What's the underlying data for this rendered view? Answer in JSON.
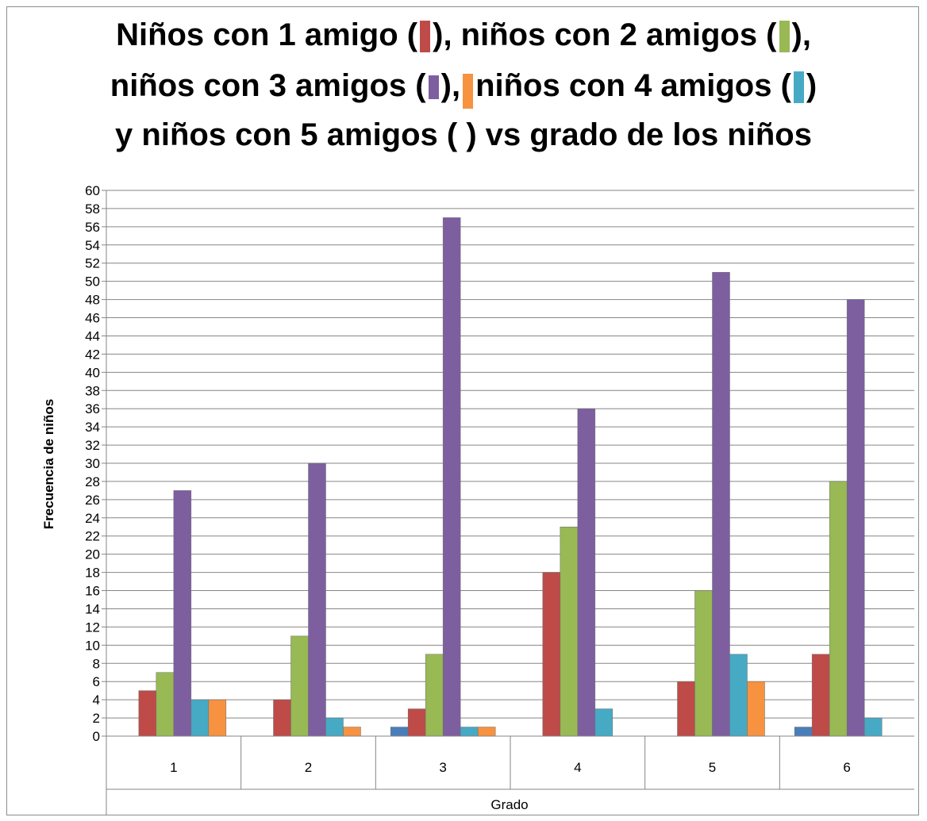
{
  "chart_data": {
    "type": "bar",
    "title_lines": [
      [
        "Niños con 1 amigo (",
        ")",
        ", niños con 2 amigos (",
        "),"
      ],
      [
        "niños con 3 amigos (",
        ")",
        ",",
        "niños con 4 amigos (",
        ")"
      ],
      [
        "y  niños con 5 amigos (   ) vs grado de los niños"
      ]
    ],
    "xlabel": "Grado",
    "ylabel": "Frecuencia de niños",
    "categories": [
      "1",
      "2",
      "3",
      "4",
      "5",
      "6"
    ],
    "ylim": [
      0,
      60
    ],
    "ytick_step": 2,
    "grid": true,
    "legend": "none",
    "series": [
      {
        "color": "#4a7ebb",
        "values": [
          0,
          0,
          1,
          0,
          0,
          1
        ]
      },
      {
        "color": "#be4b48",
        "values": [
          5,
          4,
          3,
          18,
          6,
          9
        ]
      },
      {
        "color": "#98b954",
        "values": [
          7,
          11,
          9,
          23,
          16,
          28
        ]
      },
      {
        "color": "#7d5fa0",
        "values": [
          27,
          30,
          57,
          36,
          51,
          48
        ]
      },
      {
        "color": "#46aac5",
        "values": [
          4,
          2,
          1,
          3,
          9,
          2
        ]
      },
      {
        "color": "#f69240",
        "values": [
          4,
          1,
          1,
          0,
          6,
          0
        ]
      }
    ]
  }
}
